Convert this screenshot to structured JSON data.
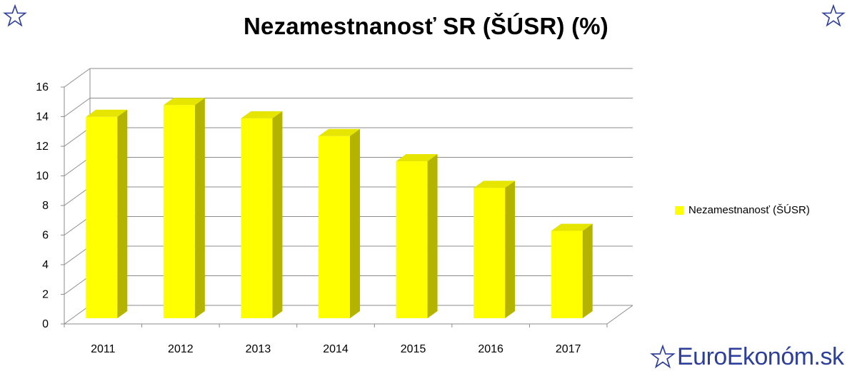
{
  "chart_data": {
    "type": "bar",
    "title": "Nezamestnanosť SR (ŠÚSR) (%)",
    "categories": [
      "2011",
      "2012",
      "2013",
      "2014",
      "2015",
      "2016",
      "2017"
    ],
    "series": [
      {
        "name": "Nezamestnanosť  (ŠÚSR)",
        "values": [
          13.6,
          14.4,
          13.5,
          12.3,
          10.6,
          8.8,
          5.9
        ]
      }
    ],
    "yticks": [
      "0",
      "2",
      "4",
      "6",
      "8",
      "10",
      "12",
      "14",
      "16"
    ],
    "ylim": [
      0,
      16
    ],
    "xlabel": "",
    "ylabel": "",
    "grid": true,
    "legend_position": "right",
    "bar_color": "#ffff00",
    "bar_side_color": "#b3b300",
    "bar_top_color": "#e5e500"
  },
  "branding": {
    "text": "EuroEkonóm.sk",
    "color": "#2d3f9a"
  }
}
